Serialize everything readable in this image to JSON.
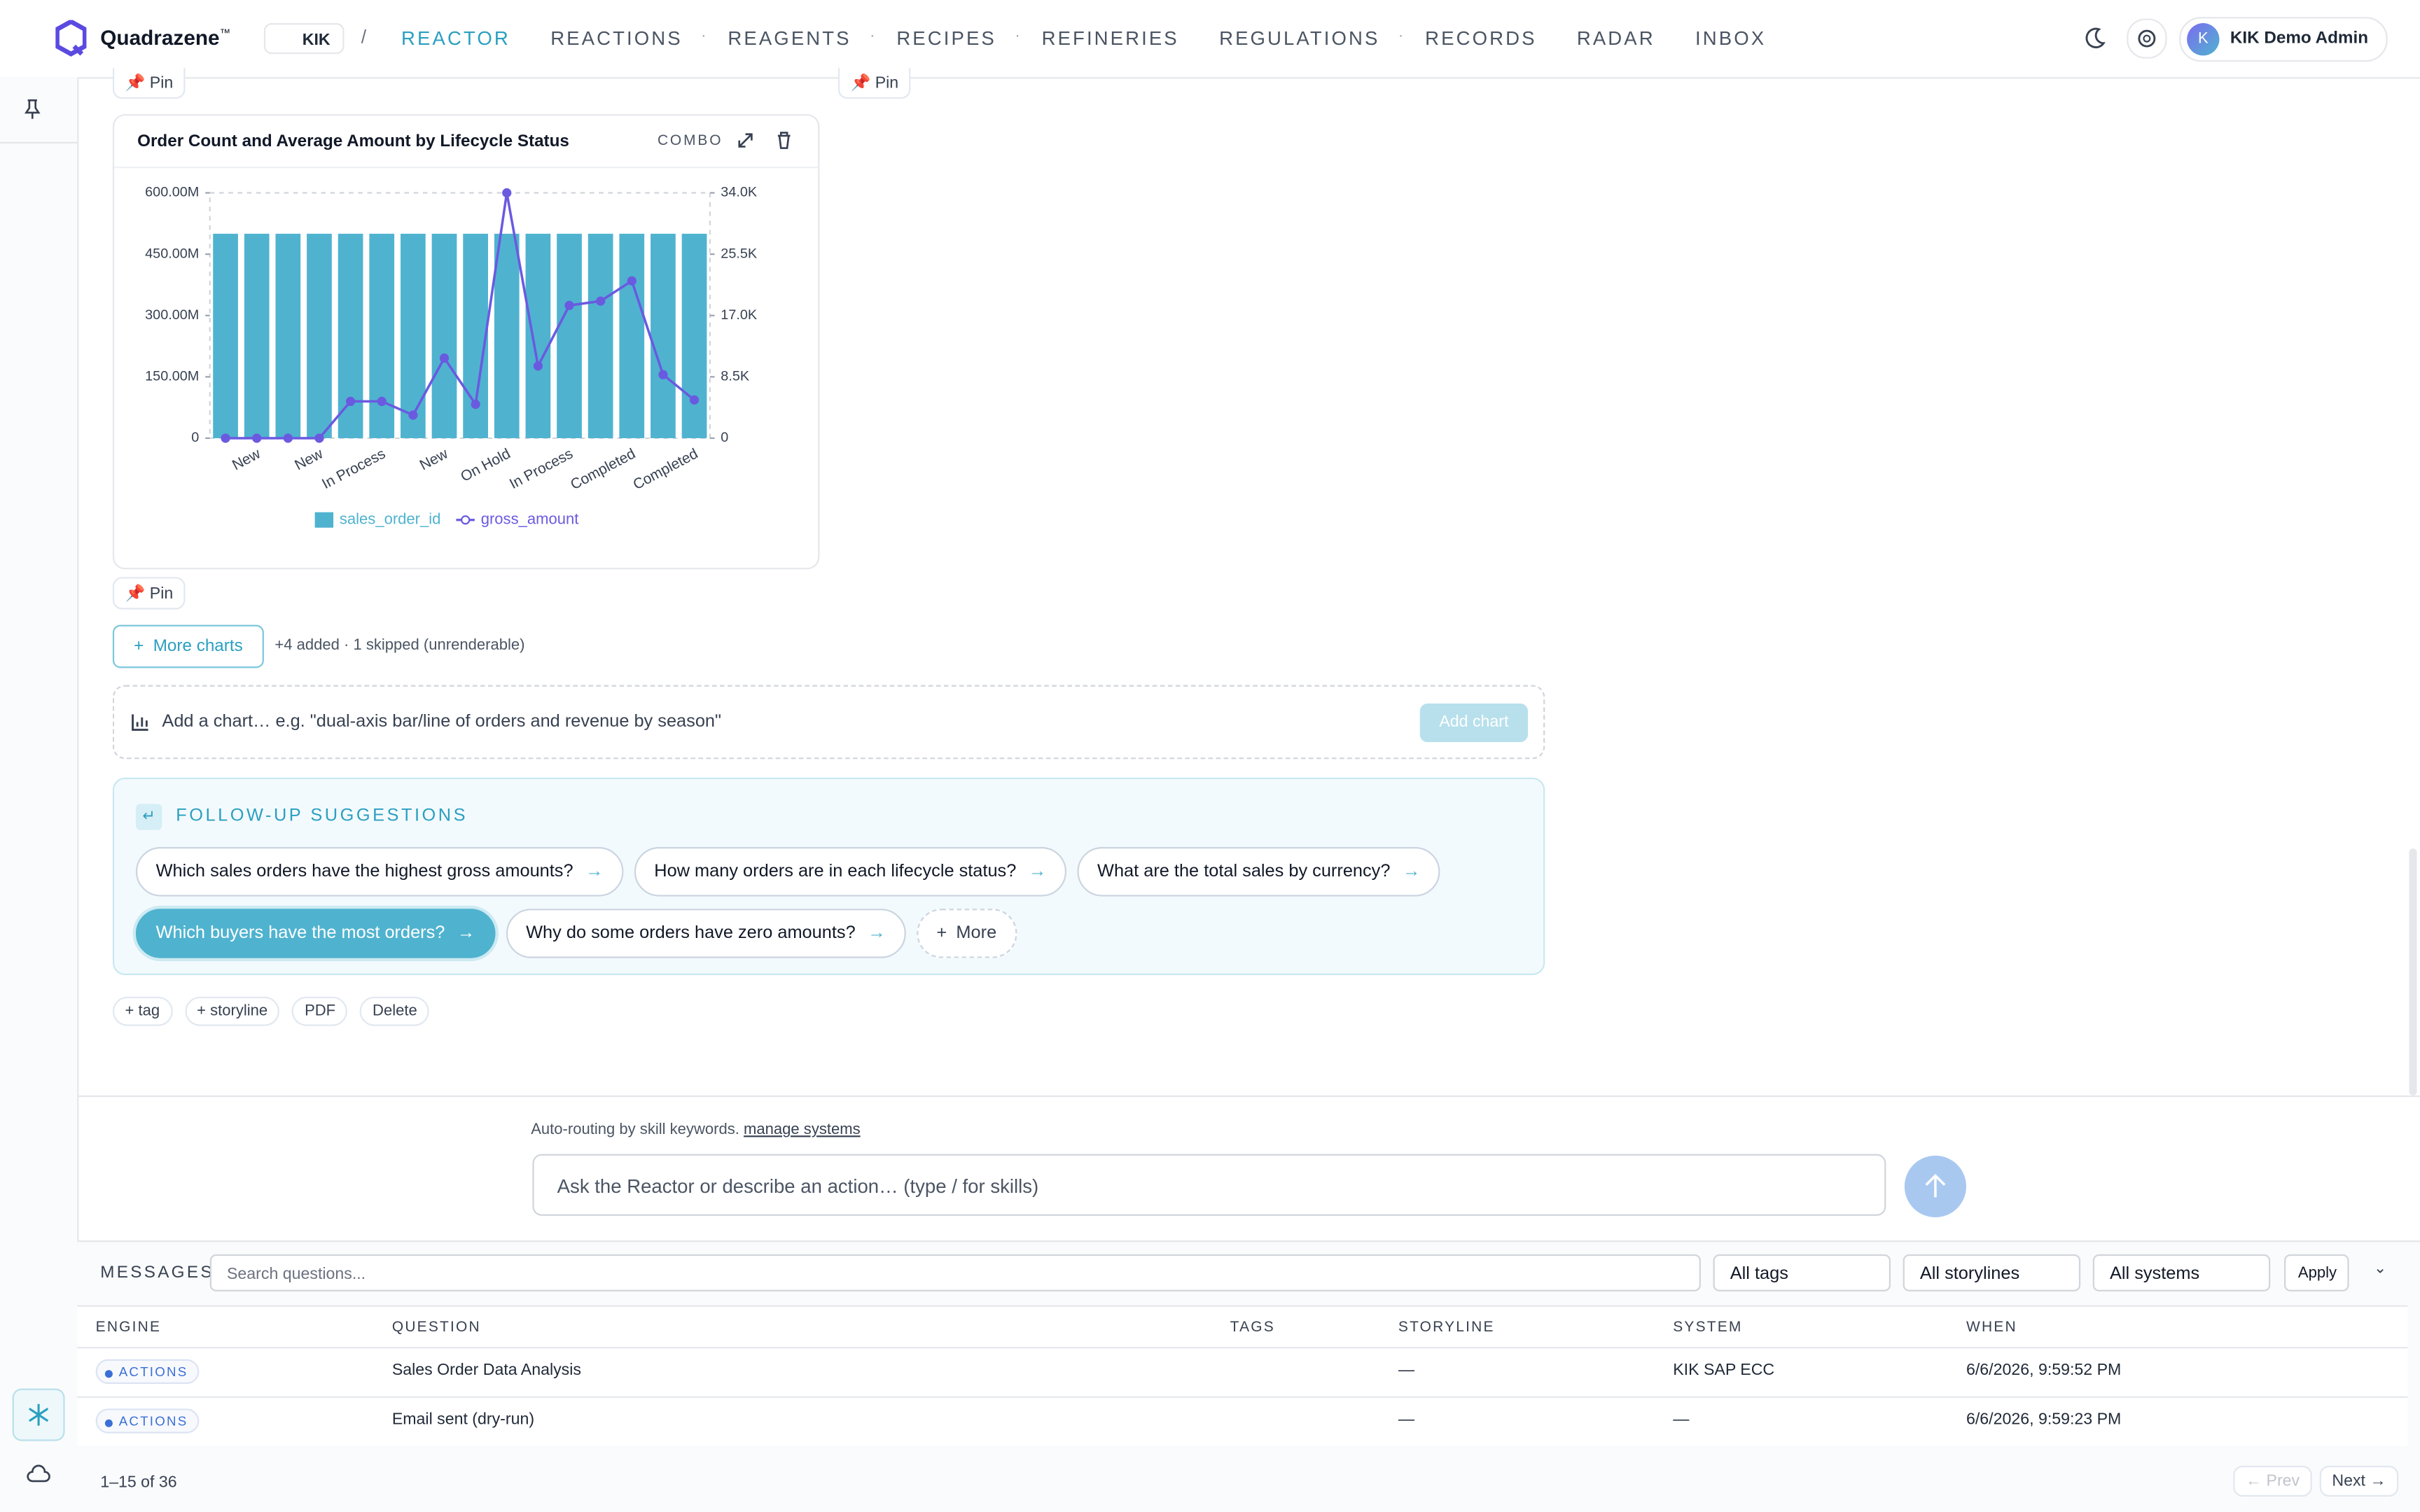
{
  "nav": {
    "brand": "Quadrazene",
    "tm": "™",
    "workspace": "KIK",
    "items": [
      "REACTOR",
      "REACTIONS",
      "REAGENTS",
      "RECIPES",
      "REFINERIES",
      "REGULATIONS",
      "RECORDS",
      "RADAR",
      "INBOX"
    ],
    "user_initial": "K",
    "user": "KIK Demo Admin"
  },
  "pin": "Pin",
  "card": {
    "kind": "COMBO"
  },
  "chart_data": {
    "type": "combo",
    "title": "Order Count and Average Amount by Lifecycle Status",
    "categories": [
      null,
      "New",
      null,
      "New",
      null,
      "In Process",
      null,
      "New",
      null,
      "On Hold",
      null,
      "In Process",
      null,
      "Completed",
      null,
      "Completed"
    ],
    "series": [
      {
        "name": "sales_order_id",
        "type": "bar",
        "color": "#4fb3cf",
        "values": [
          500000000,
          500000000,
          500000000,
          500000000,
          500000000,
          500000000,
          500000000,
          500000000,
          500000000,
          500000000,
          500000000,
          500000000,
          500000000,
          500000000,
          500000000,
          500000000
        ]
      },
      {
        "name": "gross_amount",
        "type": "line",
        "axis": "y2",
        "color": "#6a5ae0",
        "values": [
          0,
          0,
          0,
          0,
          5100,
          5100,
          3200,
          11100,
          4700,
          34000,
          10000,
          18400,
          19000,
          21800,
          8800,
          5300
        ]
      }
    ],
    "ylim": [
      0,
      600000000
    ],
    "yticks": [
      0,
      {
        "value": 150000000,
        "label": "150.00M"
      },
      {
        "value": 300000000,
        "label": "300.00M"
      },
      {
        "value": 450000000,
        "label": "450.00M"
      },
      {
        "value": 600000000,
        "label": "600.00M"
      }
    ],
    "y2lim": [
      0,
      34000
    ],
    "y2ticks": [
      0,
      {
        "value": 8500,
        "label": "8.5K"
      },
      {
        "value": 17000,
        "label": "17.0K"
      },
      {
        "value": 25500,
        "label": "25.5K"
      },
      {
        "value": 34000,
        "label": "34.0K"
      }
    ],
    "grid": false,
    "legend": "bottom"
  },
  "more_charts": "More charts",
  "charts_status": "+4 added · 1 skipped (unrenderable)",
  "add_chart": {
    "placeholder": "Add a chart… e.g. \"dual-axis bar/line of orders and revenue by season\"",
    "button": "Add chart"
  },
  "followups": {
    "title": "FOLLOW-UP SUGGESTIONS",
    "items": [
      "Which sales orders have the highest gross amounts?",
      "How many orders are in each lifecycle status?",
      "What are the total sales by currency?",
      "Which buyers have the most orders?",
      "Why do some orders have zero amounts?"
    ],
    "more": "More"
  },
  "actions": [
    "+ tag",
    "+ storyline",
    "PDF",
    "Delete"
  ],
  "composer": {
    "hint": "Auto-routing by skill keywords.",
    "link": "manage systems",
    "placeholder": "Ask the Reactor or describe an action… (type / for skills)"
  },
  "messages": {
    "title": "MESSAGES",
    "search": "Search questions...",
    "filters": [
      "All tags",
      "All storylines",
      "All systems"
    ],
    "apply": "Apply",
    "columns": [
      "ENGINE",
      "QUESTION",
      "TAGS",
      "STORYLINE",
      "SYSTEM",
      "WHEN"
    ],
    "rows": [
      {
        "engine": "ACTIONS",
        "question": "Sales Order Data Analysis",
        "storyline": "—",
        "system": "KIK SAP ECC",
        "when": "6/6/2026, 9:59:52 PM"
      },
      {
        "engine": "ACTIONS",
        "question": "Email sent (dry-run)",
        "storyline": "—",
        "system": "—",
        "when": "6/6/2026, 9:59:23 PM"
      }
    ],
    "pagination": "1–15 of 36",
    "prev": "← Prev",
    "next": "Next →"
  }
}
